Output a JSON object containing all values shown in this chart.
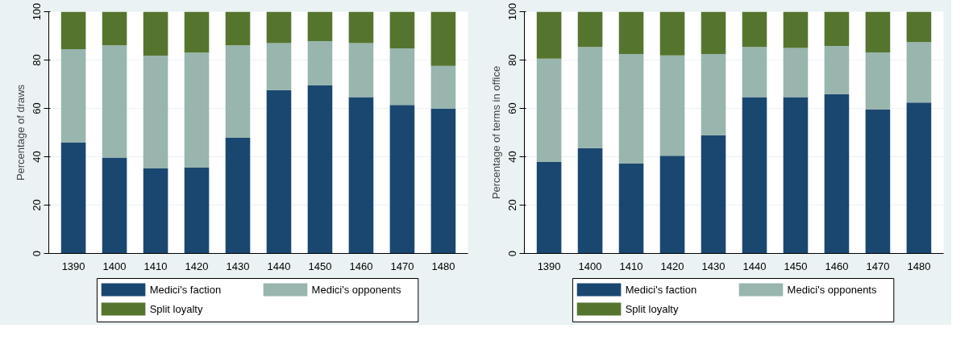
{
  "chart_data": [
    {
      "type": "bar",
      "stacked": true,
      "ylabel": "Percentage of draws",
      "categories": [
        "1390",
        "1400",
        "1410",
        "1420",
        "1430",
        "1440",
        "1450",
        "1460",
        "1470",
        "1480"
      ],
      "ylim": [
        0,
        100
      ],
      "yticks": [
        0,
        20,
        40,
        60,
        80,
        100
      ],
      "grid": "y",
      "legend": "bottom",
      "series": [
        {
          "name": "Medici's faction",
          "color": "#1a476f",
          "values": [
            45.8,
            39.7,
            35.2,
            35.5,
            47.8,
            67.6,
            69.5,
            64.7,
            61.4,
            59.8
          ]
        },
        {
          "name": "Medici's opponents",
          "color": "#98b5ae",
          "values": [
            38.7,
            46.4,
            46.6,
            47.6,
            38.3,
            19.4,
            18.3,
            22.3,
            23.4,
            17.8
          ]
        },
        {
          "name": "Split loyalty",
          "color": "#55752f",
          "values": [
            15.5,
            13.9,
            18.2,
            16.9,
            13.9,
            13.0,
            12.2,
            13.0,
            15.2,
            22.4
          ]
        }
      ]
    },
    {
      "type": "bar",
      "stacked": true,
      "ylabel": "Percentage of terms in office",
      "categories": [
        "1390",
        "1400",
        "1410",
        "1420",
        "1430",
        "1440",
        "1450",
        "1460",
        "1470",
        "1480"
      ],
      "ylim": [
        0,
        100
      ],
      "yticks": [
        0,
        20,
        40,
        60,
        80,
        100
      ],
      "grid": "y",
      "legend": "bottom",
      "series": [
        {
          "name": "Medici's faction",
          "color": "#1a476f",
          "values": [
            37.8,
            43.6,
            37.2,
            40.4,
            48.9,
            64.7,
            64.7,
            65.9,
            59.5,
            62.4
          ]
        },
        {
          "name": "Medici's opponents",
          "color": "#98b5ae",
          "values": [
            42.8,
            41.8,
            45.3,
            41.5,
            33.6,
            20.7,
            20.3,
            19.9,
            23.7,
            25.0
          ]
        },
        {
          "name": "Split loyalty",
          "color": "#55752f",
          "values": [
            19.4,
            14.6,
            17.5,
            18.1,
            17.5,
            14.6,
            15.0,
            14.2,
            16.8,
            12.6
          ]
        }
      ]
    }
  ]
}
